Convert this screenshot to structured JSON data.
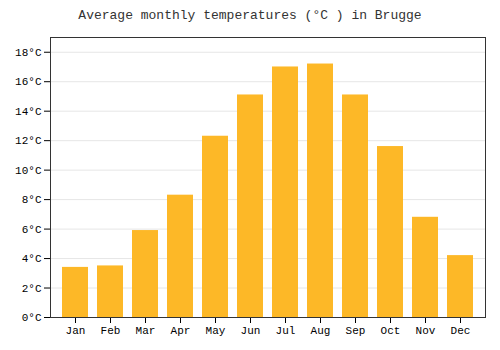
{
  "chart_data": {
    "type": "bar",
    "title": "Average monthly temperatures (°C ) in Brugge",
    "categories": [
      "Jan",
      "Feb",
      "Mar",
      "Apr",
      "May",
      "Jun",
      "Jul",
      "Aug",
      "Sep",
      "Oct",
      "Nov",
      "Dec"
    ],
    "values": [
      3.4,
      3.5,
      5.9,
      8.3,
      12.3,
      15.1,
      17.0,
      17.2,
      15.1,
      11.6,
      6.8,
      4.2
    ],
    "color": "#FDB827",
    "ylim": [
      0,
      19
    ],
    "yticks": [
      {
        "value": 0,
        "label": "0°C"
      },
      {
        "value": 2,
        "label": "2°C"
      },
      {
        "value": 4,
        "label": "4°C"
      },
      {
        "value": 6,
        "label": "6°C"
      },
      {
        "value": 8,
        "label": "8°C"
      },
      {
        "value": 10,
        "label": "10°C"
      },
      {
        "value": 12,
        "label": "12°C"
      },
      {
        "value": 14,
        "label": "14°C"
      },
      {
        "value": 16,
        "label": "16°C"
      },
      {
        "value": 18,
        "label": "18°C"
      }
    ],
    "grid": true
  }
}
